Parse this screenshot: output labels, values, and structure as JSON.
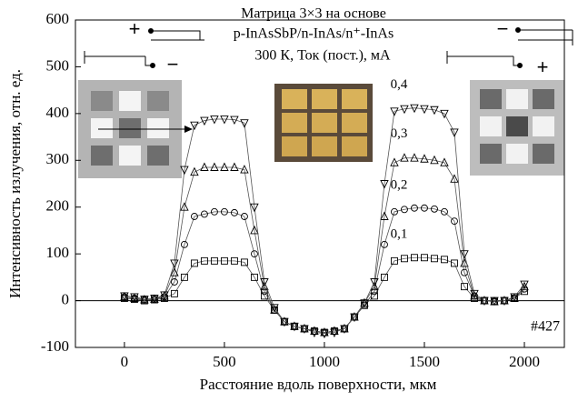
{
  "chart_data": {
    "type": "scatter-line",
    "x_label": "Расстояние вдоль поверхности, мкм",
    "y_label": "Интенсивность излучения, отн. ед.",
    "annotations": [
      "Матрица 3×3 на основе",
      "p-InAsSbP/n-InAs/n⁺-InAs",
      "300 К, Ток (пост.), мА",
      "#427"
    ],
    "diagram_signs": [
      "+",
      "−",
      "−",
      "+"
    ],
    "xlim": [
      -245,
      2200
    ],
    "xticks": [
      0,
      500,
      1000,
      1500,
      2000
    ],
    "ylim": [
      -100,
      600
    ],
    "yticks": [
      -100,
      0,
      100,
      200,
      300,
      400,
      500,
      600
    ],
    "zero_line": true,
    "x": [
      0,
      50,
      100,
      150,
      200,
      250,
      300,
      350,
      400,
      450,
      500,
      550,
      600,
      650,
      700,
      750,
      800,
      850,
      900,
      950,
      1000,
      1050,
      1100,
      1150,
      1200,
      1250,
      1300,
      1350,
      1400,
      1450,
      1500,
      1550,
      1600,
      1650,
      1700,
      1750,
      1800,
      1850,
      1900,
      1950,
      2000
    ],
    "series": [
      {
        "name": "0,1",
        "color": "#000000",
        "marker": "square",
        "values": [
          5,
          3,
          0,
          2,
          5,
          15,
          50,
          80,
          85,
          85,
          85,
          85,
          82,
          50,
          10,
          -20,
          -45,
          -55,
          -60,
          -65,
          -68,
          -65,
          -60,
          -35,
          -10,
          10,
          50,
          85,
          90,
          92,
          92,
          90,
          88,
          80,
          30,
          5,
          0,
          -2,
          0,
          5,
          20
        ]
      },
      {
        "name": "0,2",
        "color": "#000000",
        "marker": "circle",
        "values": [
          8,
          5,
          2,
          3,
          8,
          40,
          120,
          180,
          185,
          190,
          190,
          188,
          180,
          100,
          20,
          -20,
          -45,
          -55,
          -60,
          -65,
          -68,
          -65,
          -60,
          -35,
          -10,
          20,
          120,
          190,
          195,
          198,
          198,
          196,
          190,
          170,
          60,
          10,
          0,
          -2,
          0,
          5,
          25
        ]
      },
      {
        "name": "0,3",
        "color": "#000000",
        "marker": "triangle-up",
        "values": [
          8,
          5,
          2,
          3,
          10,
          60,
          200,
          275,
          285,
          285,
          285,
          285,
          280,
          150,
          30,
          -20,
          -45,
          -55,
          -60,
          -65,
          -68,
          -65,
          -60,
          -35,
          -5,
          30,
          180,
          295,
          305,
          305,
          303,
          300,
          295,
          260,
          80,
          10,
          0,
          -2,
          0,
          5,
          30
        ]
      },
      {
        "name": "0,4",
        "color": "#000000",
        "marker": "triangle-down",
        "values": [
          10,
          8,
          3,
          5,
          12,
          80,
          280,
          375,
          385,
          388,
          388,
          387,
          380,
          200,
          40,
          -15,
          -45,
          -55,
          -60,
          -68,
          -70,
          -68,
          -60,
          -35,
          -5,
          40,
          250,
          405,
          410,
          412,
          410,
          408,
          400,
          360,
          100,
          15,
          0,
          0,
          0,
          8,
          35
        ]
      }
    ]
  }
}
